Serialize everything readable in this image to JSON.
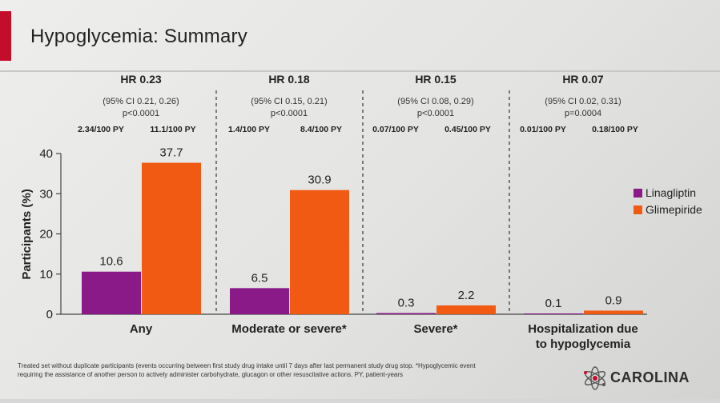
{
  "slide": {
    "title": "Hypoglycemia: Summary",
    "footnote_line1": "Treated set without duplicate participants (events occurring between first study drug intake until 7 days after last permanent study drug stop. *Hypoglycemic event",
    "footnote_line2": "requiring the assistance of another person to actively administer carbohydrate, glucagon or other resuscitative actions. PY, patient-years",
    "logo_text": "CAROLINA",
    "accent_color": "#c40d2a"
  },
  "chart_data": {
    "type": "bar",
    "categories": [
      {
        "lines": [
          "Any"
        ]
      },
      {
        "lines": [
          "Moderate or severe*"
        ]
      },
      {
        "lines": [
          "Severe*"
        ]
      },
      {
        "lines": [
          "Hospitalization due",
          "to hypoglycemia"
        ]
      }
    ],
    "series": [
      {
        "name": "Linagliptin",
        "color": "#8b1a89",
        "values": [
          10.6,
          6.5,
          0.3,
          0.1
        ]
      },
      {
        "name": "Glimepiride",
        "color": "#f15a13",
        "values": [
          37.7,
          30.9,
          2.2,
          0.9
        ]
      }
    ],
    "data_labels": [
      [
        "10.6",
        "6.5",
        "0.3",
        "0.1"
      ],
      [
        "37.7",
        "30.9",
        "2.2",
        "0.9"
      ]
    ],
    "ylabel": "Participants (%)",
    "ylim": [
      0,
      40
    ],
    "yticks": [
      0,
      10,
      20,
      30,
      40
    ],
    "legend_position": "right",
    "grid": false,
    "group_headers": [
      {
        "hr": "HR 0.23",
        "ci": "(95% CI 0.21, 0.26)",
        "p": "p<0.0001",
        "rate_lina": "2.34/100 PY",
        "rate_glim": "11.1/100 PY"
      },
      {
        "hr": "HR 0.18",
        "ci": "(95% CI 0.15, 0.21)",
        "p": "p<0.0001",
        "rate_lina": "1.4/100 PY",
        "rate_glim": "8.4/100 PY"
      },
      {
        "hr": "HR 0.15",
        "ci": "(95% CI 0.08, 0.29)",
        "p": "p<0.0001",
        "rate_lina": "0.07/100 PY",
        "rate_glim": "0.45/100 PY"
      },
      {
        "hr": "HR 0.07",
        "ci": "(95% CI 0.02, 0.31)",
        "p": "p=0.0004",
        "rate_lina": "0.01/100 PY",
        "rate_glim": "0.18/100 PY"
      }
    ]
  }
}
